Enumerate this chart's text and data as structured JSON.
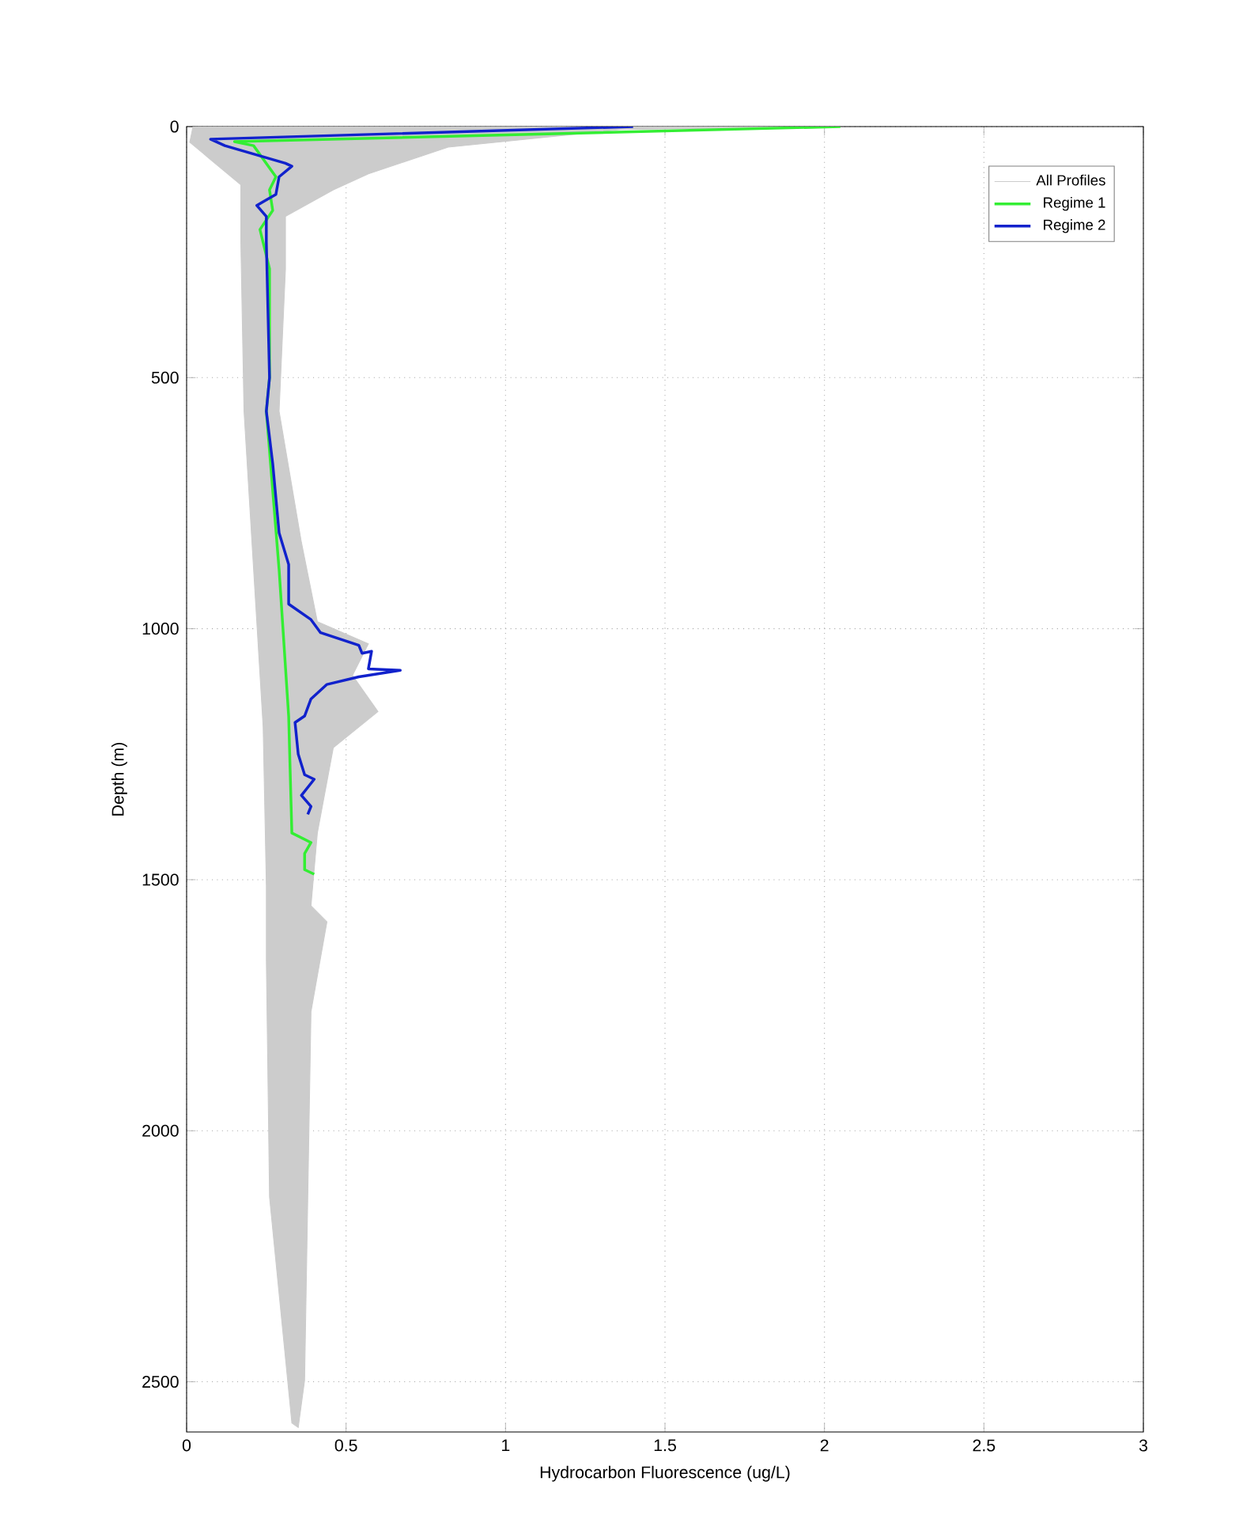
{
  "chart_data": {
    "type": "line",
    "xlabel": "Hydrocarbon Fluorescence (ug/L)",
    "ylabel": "Depth (m)",
    "xlim": [
      0,
      3
    ],
    "ylim": [
      2600,
      0
    ],
    "xticks": [
      0,
      0.5,
      1,
      1.5,
      2,
      2.5,
      3
    ],
    "yticks": [
      0,
      500,
      1000,
      1500,
      2000,
      2500
    ],
    "grid": true,
    "legend": "top right",
    "series": [
      {
        "name": "All Profiles",
        "type": "area",
        "color": "#cccccc",
        "x": [
          0.02,
          0.01,
          0.07,
          0.17,
          0.17,
          0.18,
          0.24,
          0.25,
          0.25,
          0.26,
          0.33,
          0.35,
          0.37,
          0.39,
          0.44,
          0.39,
          0.41,
          0.46,
          0.6,
          0.52,
          0.57,
          0.41,
          0.36,
          0.29,
          0.31,
          0.31,
          0.46,
          0.57,
          0.82,
          1.36,
          2.05
        ],
        "values": [
          0,
          31,
          63,
          116,
          230,
          567,
          1196,
          1511,
          1659,
          2132,
          2582,
          2591,
          2497,
          1763,
          1584,
          1552,
          1407,
          1237,
          1165,
          1093,
          1030,
          986,
          828,
          567,
          283,
          179,
          126,
          94,
          41,
          6,
          0
        ]
      },
      {
        "name": "Regime 1",
        "color": "#33ee33",
        "x": [
          2.05,
          0.15,
          0.21,
          0.28,
          0.26,
          0.27,
          0.23,
          0.26,
          0.26,
          0.25,
          0.29,
          0.32,
          0.33,
          0.39,
          0.37,
          0.37,
          0.4
        ],
        "values": [
          0,
          30,
          38,
          100,
          126,
          167,
          205,
          283,
          500,
          567,
          882,
          1174,
          1407,
          1426,
          1448,
          1480,
          1489
        ]
      },
      {
        "name": "Regime 2",
        "color": "#1122cc",
        "x": [
          1.4,
          0.075,
          0.12,
          0.31,
          0.33,
          0.29,
          0.28,
          0.22,
          0.25,
          0.25,
          0.26,
          0.25,
          0.27,
          0.29,
          0.32,
          0.32,
          0.39,
          0.42,
          0.54,
          0.55,
          0.58,
          0.57,
          0.67,
          0.54,
          0.44,
          0.39,
          0.37,
          0.34,
          0.35,
          0.37,
          0.4,
          0.36,
          0.39,
          0.38
        ],
        "values": [
          0,
          25,
          38,
          73,
          79,
          100,
          135,
          157,
          179,
          230,
          500,
          567,
          671,
          809,
          872,
          951,
          982,
          1008,
          1033,
          1049,
          1045,
          1080,
          1083,
          1096,
          1111,
          1140,
          1174,
          1187,
          1250,
          1291,
          1300,
          1332,
          1354,
          1370
        ]
      }
    ]
  }
}
